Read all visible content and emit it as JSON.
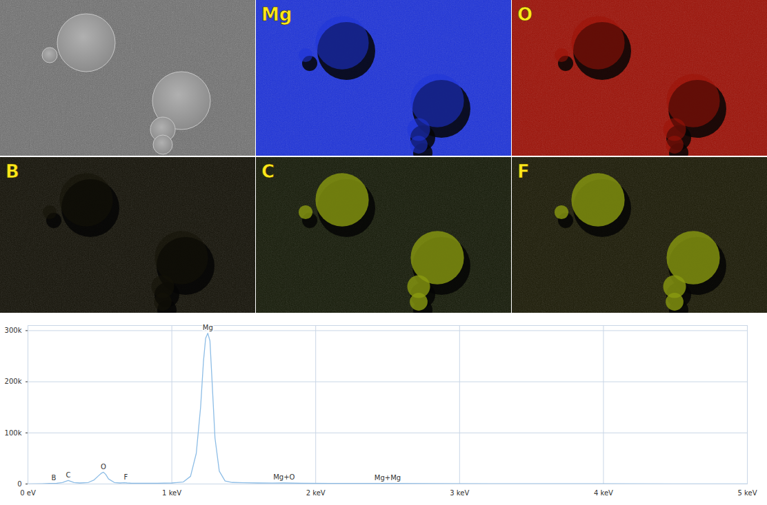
{
  "figure": {
    "maps": [
      {
        "label": "Mg",
        "color": "#1f34d8"
      },
      {
        "label": "O",
        "color": "#9c1208"
      },
      {
        "label": "B",
        "color": "#141208"
      },
      {
        "label": "C",
        "color": "#151a08"
      },
      {
        "label": "F",
        "color": "#1b1a06"
      }
    ]
  },
  "chart_data": {
    "type": "line",
    "color": "#8dbde6",
    "grid": true,
    "x": [
      0,
      0.1,
      0.15,
      0.2,
      0.24,
      0.26,
      0.28,
      0.3,
      0.32,
      0.36,
      0.42,
      0.46,
      0.49,
      0.51,
      0.525,
      0.54,
      0.56,
      0.6,
      0.64,
      0.67,
      0.69,
      0.72,
      0.8,
      0.9,
      1.0,
      1.08,
      1.13,
      1.17,
      1.2,
      1.22,
      1.235,
      1.25,
      1.265,
      1.28,
      1.3,
      1.33,
      1.37,
      1.42,
      1.5,
      1.6,
      1.7,
      1.78,
      1.9,
      2.1,
      2.3,
      2.5,
      2.8,
      3.2,
      3.6,
      4.0,
      4.5,
      5.0
    ],
    "values": [
      0,
      500,
      1000,
      1500,
      3000,
      5000,
      7000,
      5000,
      3000,
      2000,
      3000,
      8000,
      16000,
      21000,
      23000,
      19000,
      10000,
      3000,
      2000,
      2500,
      2000,
      1500,
      1500,
      1500,
      2000,
      4000,
      15000,
      60000,
      150000,
      240000,
      285000,
      295000,
      280000,
      200000,
      90000,
      25000,
      6000,
      3000,
      2500,
      2000,
      1800,
      2000,
      1500,
      1200,
      1000,
      1200,
      800,
      600,
      500,
      400,
      300,
      200
    ],
    "xlim": [
      0,
      5
    ],
    "xticks": [
      {
        "value": 0,
        "label": "0 eV"
      },
      {
        "value": 1,
        "label": "1 keV"
      },
      {
        "value": 2,
        "label": "2 keV"
      },
      {
        "value": 3,
        "label": "3 keV"
      },
      {
        "value": 4,
        "label": "4 keV"
      },
      {
        "value": 5,
        "label": "5 keV"
      }
    ],
    "ylim": [
      0,
      310000
    ],
    "yticks": [
      {
        "value": 0,
        "label": "0"
      },
      {
        "value": 100000,
        "label": "100k"
      },
      {
        "value": 200000,
        "label": "200k"
      },
      {
        "value": 300000,
        "label": "300k"
      }
    ],
    "annotations": [
      {
        "text": "B",
        "x": 0.18
      },
      {
        "text": "C",
        "x": 0.28
      },
      {
        "text": "O",
        "x": 0.525
      },
      {
        "text": "F",
        "x": 0.68
      },
      {
        "text": "Mg",
        "x": 1.25
      },
      {
        "text": "Mg+O",
        "x": 1.78
      },
      {
        "text": "Mg+Mg",
        "x": 2.5
      }
    ]
  }
}
